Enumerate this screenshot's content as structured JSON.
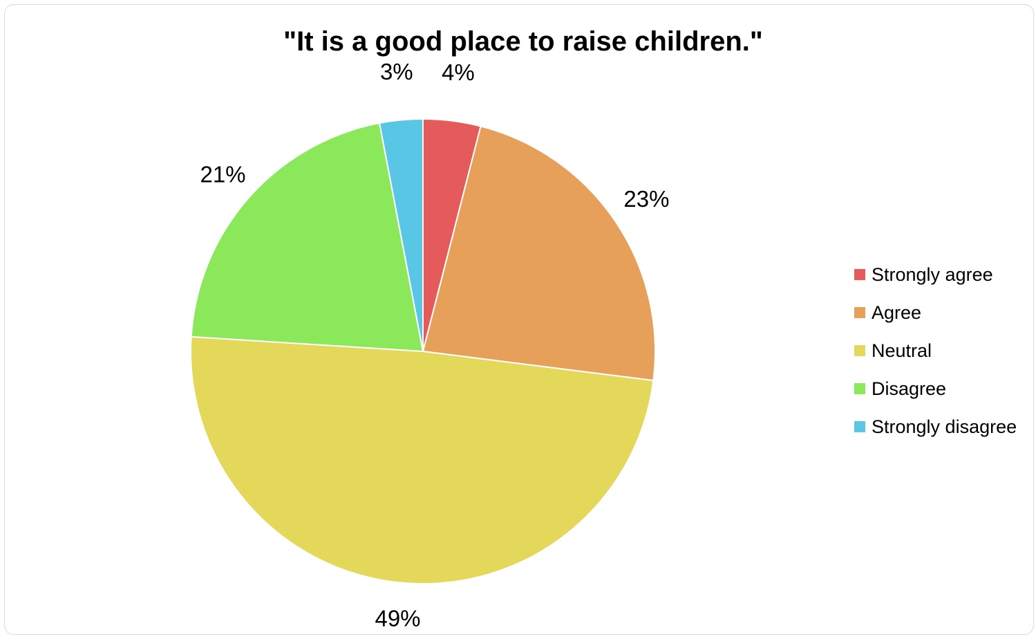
{
  "chart_data": {
    "type": "pie",
    "title": "\"It is a good place to raise children.\"",
    "categories": [
      "Strongly agree",
      "Agree",
      "Neutral",
      "Disagree",
      "Strongly disagree"
    ],
    "values": [
      4,
      23,
      49,
      21,
      3
    ],
    "data_labels": [
      "4%",
      "23%",
      "49%",
      "21%",
      "3%"
    ],
    "colors": [
      "#e55a5a",
      "#e6a05a",
      "#e4d85a",
      "#8ae85a",
      "#5ac6e6"
    ],
    "start_angle": "12 o'clock",
    "direction": "clockwise",
    "legend_position": "right"
  }
}
